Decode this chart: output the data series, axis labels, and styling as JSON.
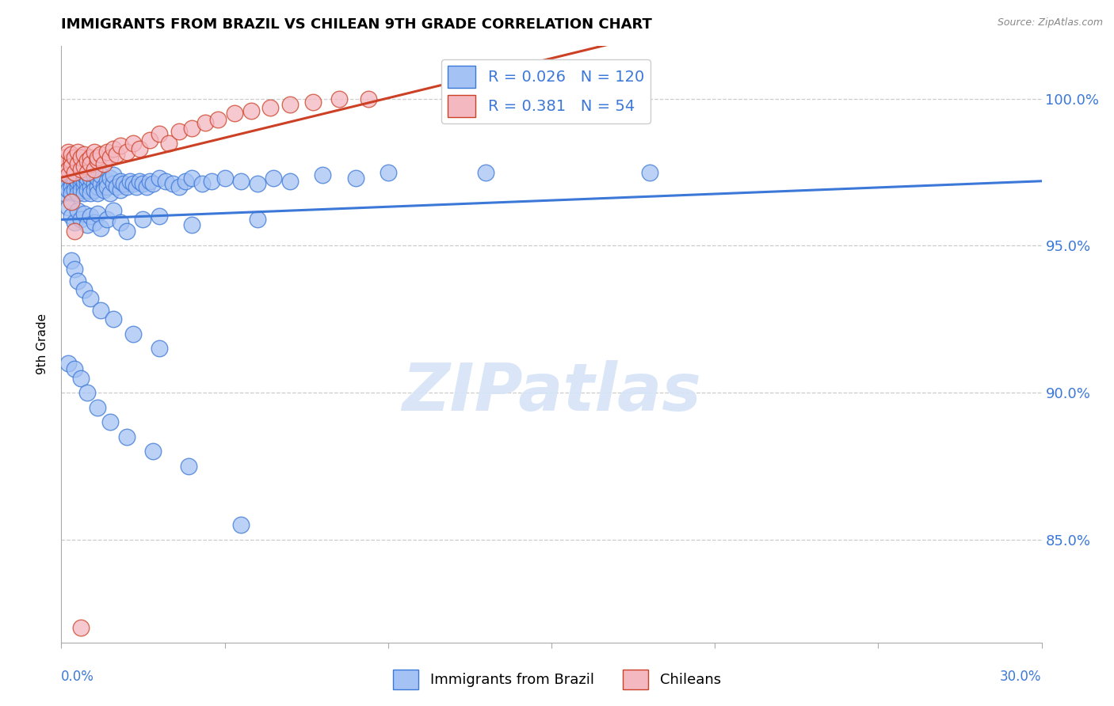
{
  "title": "IMMIGRANTS FROM BRAZIL VS CHILEAN 9TH GRADE CORRELATION CHART",
  "source": "Source: ZipAtlas.com",
  "ylabel": "9th Grade",
  "legend_label1": "Immigrants from Brazil",
  "legend_label2": "Chileans",
  "r1": 0.026,
  "n1": 120,
  "r2": 0.381,
  "n2": 54,
  "color_blue": "#a4c2f4",
  "color_pink": "#f4b8c1",
  "color_blue_line": "#3c78d8",
  "color_pink_line": "#cc4125",
  "color_blue_text": "#3c78d8",
  "color_pink_text": "#cc4125",
  "watermark_color": "#d6e4f7",
  "grid_color": "#cccccc",
  "brazil_x": [
    0.0,
    0.001,
    0.001,
    0.001,
    0.002,
    0.002,
    0.002,
    0.002,
    0.003,
    0.003,
    0.003,
    0.003,
    0.004,
    0.004,
    0.004,
    0.004,
    0.005,
    0.005,
    0.005,
    0.005,
    0.006,
    0.006,
    0.006,
    0.006,
    0.007,
    0.007,
    0.007,
    0.007,
    0.008,
    0.008,
    0.008,
    0.008,
    0.009,
    0.009,
    0.009,
    0.01,
    0.01,
    0.01,
    0.011,
    0.011,
    0.011,
    0.012,
    0.012,
    0.013,
    0.013,
    0.014,
    0.014,
    0.015,
    0.015,
    0.016,
    0.016,
    0.017,
    0.018,
    0.018,
    0.019,
    0.02,
    0.021,
    0.022,
    0.023,
    0.024,
    0.025,
    0.026,
    0.027,
    0.028,
    0.03,
    0.032,
    0.034,
    0.036,
    0.038,
    0.04,
    0.043,
    0.046,
    0.05,
    0.055,
    0.06,
    0.065,
    0.07,
    0.08,
    0.09,
    0.1,
    0.002,
    0.003,
    0.004,
    0.005,
    0.006,
    0.007,
    0.008,
    0.009,
    0.01,
    0.011,
    0.012,
    0.014,
    0.016,
    0.018,
    0.02,
    0.025,
    0.03,
    0.04,
    0.06,
    0.13,
    0.003,
    0.004,
    0.005,
    0.007,
    0.009,
    0.012,
    0.016,
    0.022,
    0.03,
    0.002,
    0.004,
    0.006,
    0.008,
    0.011,
    0.015,
    0.02,
    0.028,
    0.039,
    0.055,
    0.18
  ],
  "brazil_y": [
    97.2,
    97.5,
    97.0,
    96.8,
    97.3,
    97.1,
    96.9,
    97.6,
    97.2,
    97.0,
    96.8,
    97.4,
    97.1,
    96.9,
    97.3,
    97.5,
    97.0,
    96.8,
    97.2,
    97.4,
    97.1,
    96.9,
    97.3,
    97.5,
    97.0,
    96.8,
    97.2,
    97.4,
    97.1,
    96.9,
    97.3,
    97.5,
    97.0,
    96.8,
    97.3,
    97.1,
    96.9,
    97.4,
    97.0,
    96.8,
    97.3,
    97.1,
    97.4,
    97.0,
    96.9,
    97.2,
    97.0,
    96.8,
    97.3,
    97.1,
    97.4,
    97.0,
    96.9,
    97.2,
    97.1,
    97.0,
    97.2,
    97.1,
    97.0,
    97.2,
    97.1,
    97.0,
    97.2,
    97.1,
    97.3,
    97.2,
    97.1,
    97.0,
    97.2,
    97.3,
    97.1,
    97.2,
    97.3,
    97.2,
    97.1,
    97.3,
    97.2,
    97.4,
    97.3,
    97.5,
    96.3,
    96.0,
    95.8,
    96.2,
    95.9,
    96.1,
    95.7,
    96.0,
    95.8,
    96.1,
    95.6,
    95.9,
    96.2,
    95.8,
    95.5,
    95.9,
    96.0,
    95.7,
    95.9,
    97.5,
    94.5,
    94.2,
    93.8,
    93.5,
    93.2,
    92.8,
    92.5,
    92.0,
    91.5,
    91.0,
    90.8,
    90.5,
    90.0,
    89.5,
    89.0,
    88.5,
    88.0,
    87.5,
    85.5,
    97.5
  ],
  "chile_x": [
    0.0,
    0.001,
    0.001,
    0.002,
    0.002,
    0.002,
    0.003,
    0.003,
    0.003,
    0.004,
    0.004,
    0.005,
    0.005,
    0.006,
    0.006,
    0.007,
    0.007,
    0.008,
    0.008,
    0.009,
    0.009,
    0.01,
    0.01,
    0.011,
    0.011,
    0.012,
    0.013,
    0.014,
    0.015,
    0.016,
    0.017,
    0.018,
    0.02,
    0.022,
    0.024,
    0.027,
    0.03,
    0.033,
    0.036,
    0.04,
    0.044,
    0.048,
    0.053,
    0.058,
    0.064,
    0.07,
    0.077,
    0.085,
    0.094,
    0.13,
    0.16,
    0.003,
    0.004,
    0.006
  ],
  "chile_y": [
    97.5,
    97.8,
    98.0,
    97.6,
    98.2,
    97.4,
    97.9,
    98.1,
    97.7,
    98.0,
    97.5,
    97.8,
    98.2,
    97.6,
    98.0,
    97.7,
    98.1,
    97.9,
    97.5,
    98.0,
    97.8,
    97.6,
    98.2,
    97.9,
    98.0,
    98.1,
    97.8,
    98.2,
    98.0,
    98.3,
    98.1,
    98.4,
    98.2,
    98.5,
    98.3,
    98.6,
    98.8,
    98.5,
    98.9,
    99.0,
    99.2,
    99.3,
    99.5,
    99.6,
    99.7,
    99.8,
    99.9,
    100.0,
    100.0,
    99.8,
    99.9,
    96.5,
    95.5,
    82.0
  ],
  "xlim": [
    0.0,
    0.3
  ],
  "ylim": [
    81.5,
    101.8
  ],
  "ytick_positions": [
    85,
    90,
    95,
    100
  ],
  "ytick_labels": [
    "85.0%",
    "90.0%",
    "95.0%",
    "100.0%"
  ],
  "xtick_positions": [
    0.0,
    0.05,
    0.1,
    0.15,
    0.2,
    0.25,
    0.3
  ]
}
